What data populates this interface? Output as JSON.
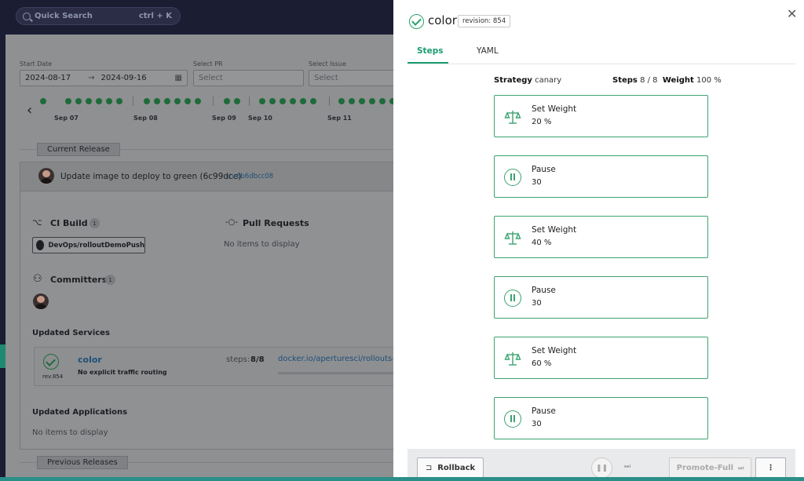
{
  "search": {
    "label": "Quick Search",
    "shortcut": "ctrl + K"
  },
  "filters": {
    "start_date_label": "Start Date",
    "start_date": "2024-08-17",
    "end_date": "2024-09-16",
    "pr_label": "Select PR",
    "pr_placeholder": "Select",
    "issue_label": "Select Issue",
    "issue_placeholder": "Select"
  },
  "timeline": {
    "dates": [
      "Sep 07",
      "Sep 08",
      "Sep 09",
      "Sep 10",
      "Sep 11"
    ]
  },
  "current_release": {
    "label": "Current Release",
    "commit_message": "Update image to deploy to green (6c99dce)",
    "commit_sha": "6b6dbcc08",
    "ci_build_label": "CI Build",
    "ci_build_count": "1",
    "ci_build_item": "DevOps/rolloutDemoPush",
    "pull_requests_label": "Pull Requests",
    "pull_requests_empty": "No items to display",
    "committers_label": "Committers",
    "committers_count": "1",
    "updated_services_label": "Updated Services",
    "service": {
      "name": "color",
      "revision": "rev.854",
      "routing": "No explicit traffic routing",
      "steps_label": "steps:",
      "steps_value": "8/8",
      "image": "docker.io/aperturesci/rollouts-"
    },
    "updated_applications_label": "Updated Applications",
    "updated_applications_empty": "No items to display",
    "previous_releases_label": "Previous Releases"
  },
  "panel": {
    "title": "color",
    "revision": "revision: 854",
    "tabs": [
      "Steps",
      "YAML"
    ],
    "strategy_label": "Strategy",
    "strategy_value": "canary",
    "steps_label": "Steps",
    "steps_value": "8 / 8",
    "weight_label": "Weight",
    "weight_value": "100 %",
    "steps": [
      {
        "type": "Set Weight",
        "value": "20 %",
        "icon": "scale-icon"
      },
      {
        "type": "Pause",
        "value": "30",
        "icon": "pause-icon"
      },
      {
        "type": "Set Weight",
        "value": "40 %",
        "icon": "scale-icon"
      },
      {
        "type": "Pause",
        "value": "30",
        "icon": "pause-icon"
      },
      {
        "type": "Set Weight",
        "value": "60 %",
        "icon": "scale-icon"
      },
      {
        "type": "Pause",
        "value": "30",
        "icon": "pause-icon"
      }
    ],
    "footer": {
      "rollback": "Rollback",
      "promote_full": "Promote-Full"
    }
  },
  "colors": {
    "accent": "#1a9c70",
    "step_border": "#3da36f",
    "overlay": "#8f9092"
  }
}
